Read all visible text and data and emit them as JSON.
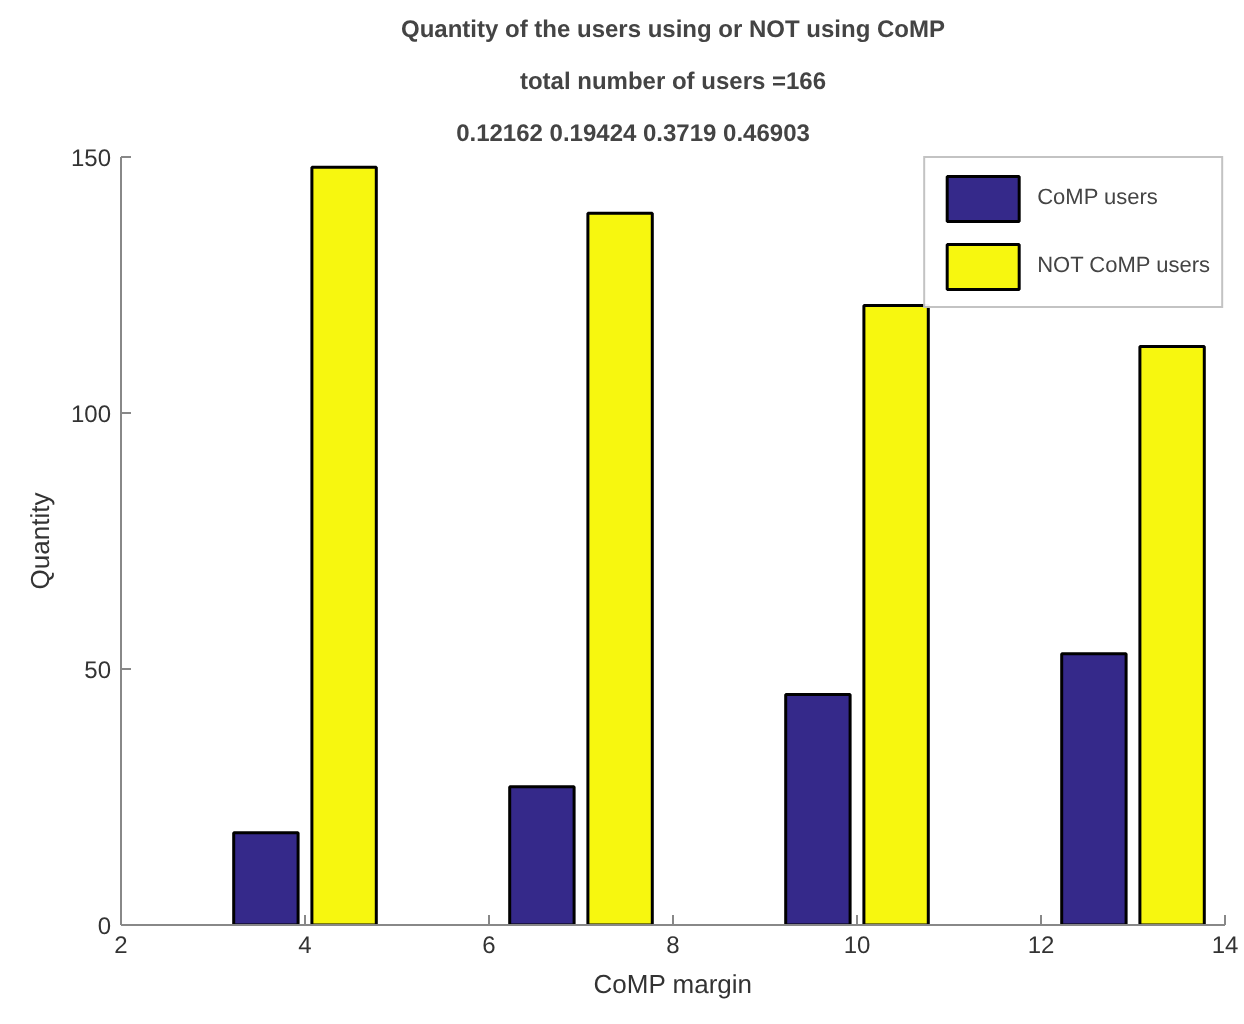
{
  "chart_data": {
    "type": "bar",
    "title": "Quantity of the users using or NOT using CoMP",
    "subtitle": "total number of users =166",
    "annotations": [
      "0.12162     0.19424     0.3719     0.46903"
    ],
    "x": [
      4,
      7,
      10,
      13
    ],
    "xlabel": "CoMP margin",
    "ylabel": "Quantity",
    "series": [
      {
        "name": "CoMP users",
        "color": "#35298a",
        "values": [
          18,
          27,
          45,
          53
        ]
      },
      {
        "name": "NOT CoMP users",
        "color": "#f7f70f",
        "values": [
          148,
          139,
          121,
          113
        ]
      }
    ],
    "xlim": [
      2,
      14
    ],
    "xticks": [
      2,
      4,
      6,
      8,
      10,
      12,
      14
    ],
    "ylim": [
      0,
      150
    ],
    "yticks": [
      0,
      50,
      100,
      150
    ],
    "grid": false,
    "legend": "top right"
  }
}
